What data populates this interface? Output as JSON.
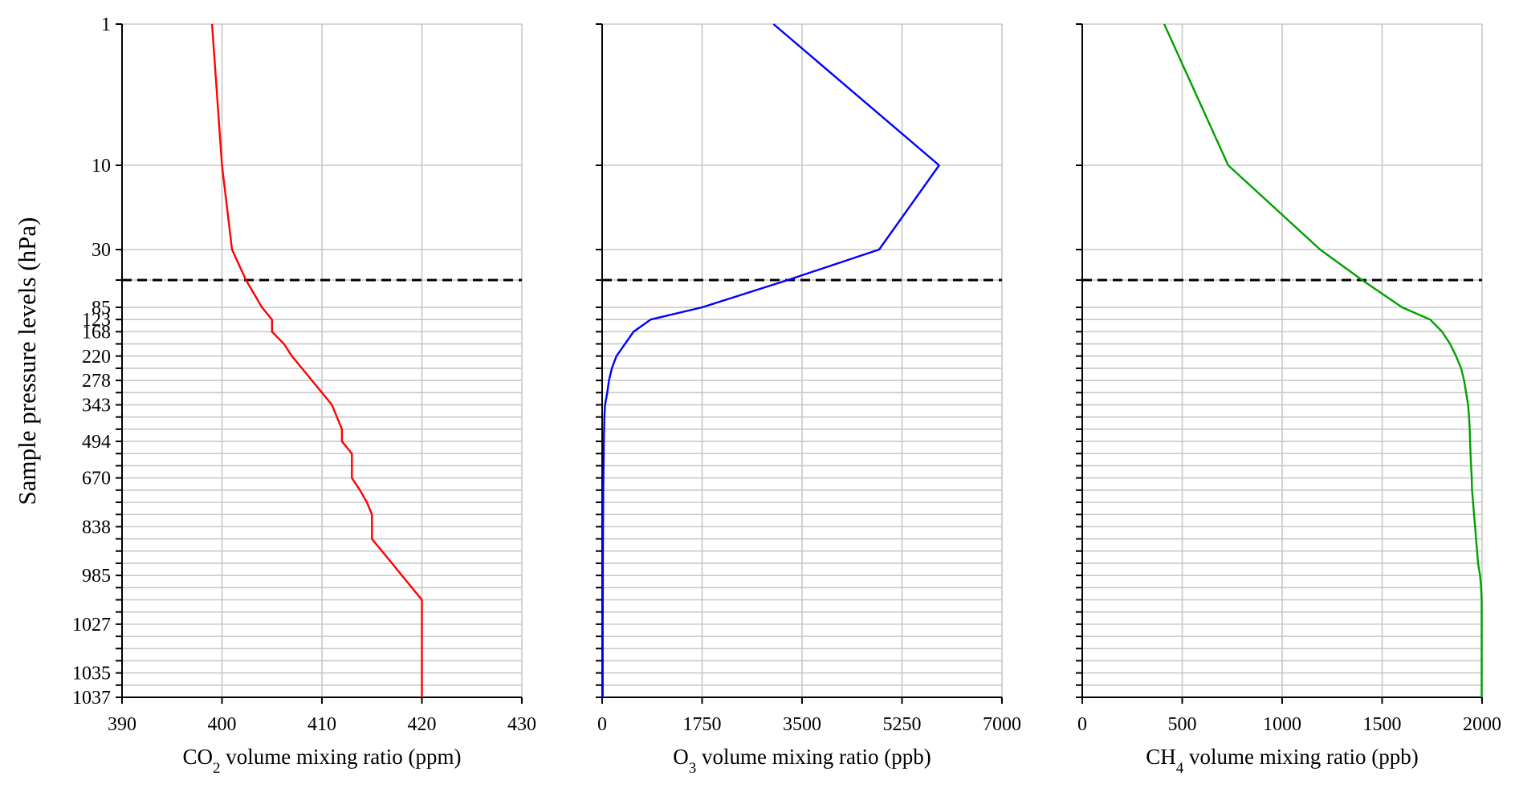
{
  "chart_data": {
    "type": "line",
    "ylabel": "Sample pressure levels (hPa)",
    "y_levels": [
      1,
      10,
      30,
      50,
      85,
      123,
      168,
      200,
      220,
      250,
      278,
      300,
      343,
      400,
      450,
      494,
      550,
      600,
      670,
      700,
      750,
      800,
      838,
      880,
      920,
      950,
      985,
      1000,
      1015,
      1020,
      1027,
      1030,
      1032,
      1034,
      1035,
      1036,
      1037
    ],
    "y_tick_labels": [
      "1",
      "10",
      "30",
      "85",
      "123",
      "168",
      "220",
      "278",
      "343",
      "494",
      "670",
      "838",
      "985",
      "1027",
      "1035",
      "1037"
    ],
    "reference_line": {
      "y": 50,
      "style": "dashed",
      "color": "#000000"
    },
    "panels": [
      {
        "xlabel_main": "CO",
        "xlabel_sub": "2",
        "xlabel_rest": " volume mixing ratio (ppm)",
        "xlim": [
          390,
          430
        ],
        "xticks": [
          "390",
          "400",
          "410",
          "420",
          "430"
        ],
        "xtick_values": [
          390,
          400,
          410,
          420,
          430
        ],
        "color": "#ff0000",
        "values": [
          399,
          400,
          401,
          402.4,
          404,
          405,
          405,
          406.2,
          407,
          408,
          409,
          410,
          411,
          411.5,
          412,
          412,
          413,
          413,
          413,
          413.8,
          414.5,
          415,
          415,
          415,
          416,
          417,
          418,
          419,
          420,
          420,
          420,
          420,
          420,
          420,
          420,
          420,
          420
        ]
      },
      {
        "xlabel_main": "O",
        "xlabel_sub": "3",
        "xlabel_rest": " volume mixing ratio (ppb)",
        "xlim": [
          0,
          7000
        ],
        "xticks": [
          "0",
          "1750",
          "3500",
          "5250",
          "7000"
        ],
        "xtick_values": [
          0,
          1750,
          3500,
          5250,
          7000
        ],
        "color": "#0000ff",
        "values": [
          3000,
          5900,
          4850,
          3250,
          1750,
          850,
          550,
          400,
          250,
          170,
          120,
          90,
          50,
          40,
          35,
          30,
          28,
          25,
          22,
          20,
          18,
          17,
          16,
          15,
          14,
          13,
          12,
          12,
          11,
          11,
          10,
          10,
          10,
          10,
          10,
          10,
          10
        ]
      },
      {
        "xlabel_main": "CH",
        "xlabel_sub": "4",
        "xlabel_rest": " volume mixing ratio (ppb)",
        "xlim": [
          0,
          2000
        ],
        "xticks": [
          "0",
          "500",
          "1000",
          "1500",
          "2000"
        ],
        "xtick_values": [
          0,
          500,
          1000,
          1500,
          2000
        ],
        "color": "#00a000",
        "values": [
          410,
          730,
          1190,
          1400,
          1600,
          1740,
          1800,
          1840,
          1870,
          1895,
          1910,
          1920,
          1930,
          1935,
          1938,
          1940,
          1942,
          1945,
          1948,
          1950,
          1955,
          1960,
          1965,
          1970,
          1975,
          1980,
          1990,
          1995,
          1998,
          1998,
          1998,
          1998,
          1998,
          1998,
          1998,
          1998,
          1998
        ]
      }
    ]
  }
}
